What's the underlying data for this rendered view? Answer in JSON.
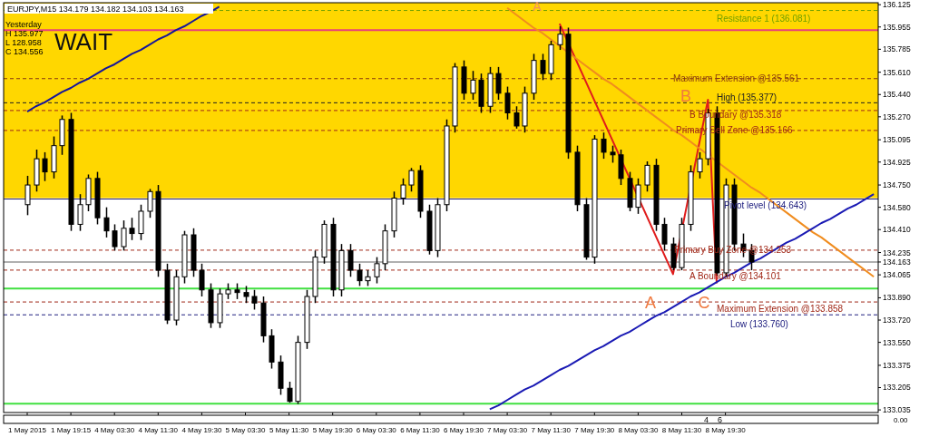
{
  "chart_data": {
    "type": "candlestick",
    "title": "EURJPY,M15 134.179 134.182 134.103 134.163",
    "color": "#000000",
    "categories": [
      "1 May 2015",
      null,
      null,
      null,
      null,
      "1 May 19:15",
      null,
      null,
      null,
      null,
      "4 May 03:30",
      null,
      null,
      null,
      null,
      "4 May 11:30",
      null,
      null,
      null,
      null,
      "4 May 19:30",
      null,
      null,
      null,
      null,
      "5 May 03:30",
      null,
      null,
      null,
      null,
      "5 May 11:30",
      null,
      null,
      null,
      null,
      "5 May 19:30",
      null,
      null,
      null,
      null,
      "6 May 03:30",
      null,
      null,
      null,
      null,
      "6 May 11:30",
      null,
      null,
      null,
      null,
      "6 May 19:30",
      null,
      null,
      null,
      null,
      "7 May 03:30",
      null,
      null,
      null,
      null,
      "7 May 11:30",
      null,
      null,
      null,
      null,
      "7 May 19:30",
      null,
      null,
      null,
      null,
      "8 May 03:30",
      null,
      null,
      null,
      null,
      "8 May 11:30",
      null,
      null,
      null,
      null,
      "8 May 19:30",
      null,
      null,
      null,
      null,
      null,
      null,
      null,
      null,
      null,
      null,
      null,
      null,
      null,
      null,
      null,
      null,
      null
    ],
    "ohlc": [
      [
        134.6,
        134.82,
        134.52,
        134.75
      ],
      [
        134.75,
        135.02,
        134.7,
        134.95
      ],
      [
        134.95,
        135.0,
        134.78,
        134.85
      ],
      [
        134.85,
        135.12,
        134.8,
        135.05
      ],
      [
        135.05,
        135.28,
        134.98,
        135.25
      ],
      [
        135.25,
        135.3,
        134.4,
        134.45
      ],
      [
        134.45,
        134.68,
        134.4,
        134.6
      ],
      [
        134.6,
        134.83,
        134.55,
        134.8
      ],
      [
        134.8,
        134.85,
        134.45,
        134.5
      ],
      [
        134.5,
        134.58,
        134.35,
        134.4
      ],
      [
        134.4,
        134.45,
        134.25,
        134.28
      ],
      [
        134.28,
        134.48,
        134.25,
        134.42
      ],
      [
        134.42,
        134.5,
        134.33,
        134.38
      ],
      [
        134.38,
        134.6,
        134.33,
        134.55
      ],
      [
        134.55,
        134.72,
        134.5,
        134.7
      ],
      [
        134.7,
        134.75,
        134.05,
        134.1
      ],
      [
        134.1,
        134.15,
        133.69,
        133.72
      ],
      [
        133.72,
        134.1,
        133.68,
        134.05
      ],
      [
        134.05,
        134.4,
        134.0,
        134.37
      ],
      [
        134.37,
        134.42,
        134.05,
        134.1
      ],
      [
        134.1,
        134.15,
        133.9,
        133.95
      ],
      [
        133.95,
        134.0,
        133.66,
        133.7
      ],
      [
        133.7,
        133.96,
        133.66,
        133.92
      ],
      [
        133.92,
        134.0,
        133.88,
        133.95
      ],
      [
        133.95,
        134.0,
        133.88,
        133.93
      ],
      [
        133.93,
        133.98,
        133.85,
        133.9
      ],
      [
        133.9,
        133.95,
        133.8,
        133.85
      ],
      [
        133.85,
        133.9,
        133.55,
        133.6
      ],
      [
        133.6,
        133.65,
        133.35,
        133.4
      ],
      [
        133.4,
        133.45,
        133.15,
        133.2
      ],
      [
        133.2,
        133.25,
        133.09,
        133.1
      ],
      [
        133.1,
        133.6,
        133.08,
        133.55
      ],
      [
        133.55,
        133.95,
        133.5,
        133.9
      ],
      [
        133.9,
        134.25,
        133.85,
        134.2
      ],
      [
        134.2,
        134.48,
        134.15,
        134.45
      ],
      [
        134.45,
        134.5,
        133.9,
        133.95
      ],
      [
        133.95,
        134.3,
        133.9,
        134.25
      ],
      [
        134.25,
        134.3,
        134.05,
        134.1
      ],
      [
        134.1,
        134.15,
        133.98,
        134.02
      ],
      [
        134.02,
        134.1,
        133.98,
        134.05
      ],
      [
        134.05,
        134.2,
        134.0,
        134.15
      ],
      [
        134.15,
        134.45,
        134.1,
        134.4
      ],
      [
        134.4,
        134.7,
        134.35,
        134.65
      ],
      [
        134.65,
        134.8,
        134.6,
        134.75
      ],
      [
        134.75,
        134.88,
        134.7,
        134.86
      ],
      [
        134.86,
        134.9,
        134.5,
        134.55
      ],
      [
        134.55,
        134.6,
        134.22,
        134.25
      ],
      [
        134.25,
        134.65,
        134.2,
        134.6
      ],
      [
        134.6,
        135.25,
        134.55,
        135.2
      ],
      [
        135.2,
        135.68,
        135.15,
        135.65
      ],
      [
        135.65,
        135.7,
        135.4,
        135.45
      ],
      [
        135.45,
        135.62,
        135.4,
        135.55
      ],
      [
        135.55,
        135.6,
        135.3,
        135.35
      ],
      [
        135.35,
        135.65,
        135.3,
        135.6
      ],
      [
        135.6,
        135.65,
        135.4,
        135.45
      ],
      [
        135.45,
        135.5,
        135.25,
        135.3
      ],
      [
        135.3,
        135.35,
        135.18,
        135.2
      ],
      [
        135.2,
        135.5,
        135.15,
        135.45
      ],
      [
        135.45,
        135.75,
        135.4,
        135.7
      ],
      [
        135.7,
        135.75,
        135.55,
        135.6
      ],
      [
        135.6,
        135.85,
        135.55,
        135.82
      ],
      [
        135.82,
        135.96,
        135.78,
        135.9
      ],
      [
        135.9,
        135.95,
        134.95,
        135.0
      ],
      [
        135.0,
        135.05,
        134.55,
        134.6
      ],
      [
        134.6,
        134.65,
        134.18,
        134.2
      ],
      [
        134.2,
        135.13,
        134.15,
        135.1
      ],
      [
        135.1,
        135.15,
        134.95,
        135.0
      ],
      [
        135.0,
        135.05,
        134.92,
        134.98
      ],
      [
        134.98,
        135.02,
        134.75,
        134.8
      ],
      [
        134.8,
        134.85,
        134.55,
        134.58
      ],
      [
        134.58,
        134.8,
        134.53,
        134.75
      ],
      [
        134.75,
        134.93,
        134.7,
        134.9
      ],
      [
        134.9,
        134.95,
        134.4,
        134.45
      ],
      [
        134.45,
        134.5,
        134.25,
        134.3
      ],
      [
        134.3,
        134.35,
        134.1,
        134.12
      ],
      [
        134.12,
        134.5,
        134.1,
        134.45
      ],
      [
        134.45,
        134.9,
        134.4,
        134.85
      ],
      [
        134.85,
        135.0,
        134.8,
        134.95
      ],
      [
        134.95,
        135.33,
        134.9,
        135.3
      ],
      [
        135.3,
        135.35,
        134.06,
        134.08
      ],
      [
        134.08,
        134.8,
        134.05,
        134.75
      ],
      [
        134.75,
        134.8,
        134.25,
        134.3
      ],
      [
        134.3,
        134.38,
        134.2,
        134.25
      ],
      [
        134.25,
        134.3,
        134.1,
        134.163
      ],
      null,
      null,
      null,
      null,
      null,
      null,
      null,
      null,
      null,
      null,
      null,
      null,
      null,
      null
    ],
    "series": [
      {
        "type": "line",
        "color": "#14149c",
        "values": [
          135.31,
          135.35,
          135.38,
          135.42,
          135.46,
          135.49,
          135.53,
          135.56,
          135.6,
          135.64,
          135.67,
          135.71,
          135.75,
          135.78,
          135.82,
          135.86,
          135.89,
          135.93,
          135.96,
          136.0,
          136.04,
          136.07,
          136.11,
          null,
          null,
          null,
          null,
          null,
          null,
          null,
          null,
          null,
          null,
          null,
          null,
          null,
          null,
          null,
          null,
          null,
          null,
          null,
          null,
          null,
          null,
          null,
          null,
          null,
          null,
          null,
          null,
          null,
          null,
          null,
          null,
          null,
          null,
          null,
          null,
          null,
          null,
          null,
          null,
          null,
          null,
          null,
          null,
          null,
          null,
          null,
          null,
          null,
          null,
          null,
          null,
          null,
          null,
          null,
          null,
          null,
          null,
          null,
          null,
          null,
          null,
          null,
          null,
          null,
          null,
          null,
          null,
          null,
          null,
          null,
          null,
          null,
          null,
          null
        ]
      },
      {
        "type": "line",
        "color": "#e01c1c",
        "values": [
          null,
          null,
          null,
          null,
          null,
          null,
          null,
          null,
          null,
          null,
          null,
          null,
          null,
          null,
          null,
          null,
          null,
          null,
          null,
          null,
          null,
          null,
          null,
          null,
          null,
          null,
          null,
          null,
          null,
          null,
          null,
          null,
          null,
          null,
          null,
          null,
          null,
          null,
          null,
          null,
          null,
          null,
          null,
          null,
          null,
          null,
          null,
          null,
          null,
          null,
          null,
          null,
          null,
          null,
          null,
          null,
          null,
          null,
          null,
          null,
          null,
          135.98,
          null,
          null,
          null,
          null,
          null,
          null,
          null,
          null,
          null,
          null,
          null,
          null,
          134.07,
          null,
          null,
          null,
          135.4,
          134.0,
          null,
          null,
          null,
          null,
          null,
          null,
          null,
          null,
          null,
          null,
          null,
          null,
          null,
          null,
          null,
          null,
          null,
          null
        ]
      },
      {
        "type": "line",
        "color": "#f08c1e",
        "values": [
          null,
          null,
          null,
          null,
          null,
          null,
          null,
          null,
          null,
          null,
          null,
          null,
          null,
          null,
          null,
          null,
          null,
          null,
          null,
          null,
          null,
          null,
          null,
          null,
          null,
          null,
          null,
          null,
          null,
          null,
          null,
          null,
          null,
          null,
          null,
          null,
          null,
          null,
          null,
          null,
          null,
          null,
          null,
          null,
          null,
          null,
          null,
          null,
          null,
          null,
          null,
          null,
          null,
          null,
          null,
          136.1,
          136.05,
          136.0,
          135.95,
          135.91,
          135.86,
          135.81,
          135.76,
          135.71,
          135.66,
          135.61,
          135.56,
          135.52,
          135.47,
          135.42,
          135.37,
          135.32,
          135.27,
          135.22,
          135.17,
          135.13,
          135.08,
          135.03,
          134.98,
          134.93,
          134.88,
          134.83,
          134.78,
          134.73,
          134.69,
          134.64,
          134.59,
          134.54,
          134.49,
          134.44,
          134.39,
          134.35,
          134.3,
          134.25,
          134.2,
          134.15,
          134.1,
          134.05
        ]
      },
      {
        "type": "line",
        "color": "#1a1ab4",
        "values": [
          null,
          null,
          null,
          null,
          null,
          null,
          null,
          null,
          null,
          null,
          null,
          null,
          null,
          null,
          null,
          null,
          null,
          null,
          null,
          null,
          null,
          null,
          null,
          null,
          null,
          null,
          null,
          null,
          null,
          null,
          null,
          null,
          null,
          null,
          null,
          null,
          null,
          null,
          null,
          null,
          null,
          null,
          null,
          null,
          null,
          null,
          null,
          null,
          null,
          null,
          null,
          null,
          null,
          133.04,
          133.07,
          133.11,
          133.15,
          133.19,
          133.22,
          133.26,
          133.3,
          133.34,
          133.37,
          133.41,
          133.45,
          133.49,
          133.52,
          133.56,
          133.6,
          133.63,
          133.67,
          133.71,
          133.75,
          133.78,
          133.82,
          133.86,
          133.9,
          133.93,
          133.97,
          134.01,
          134.05,
          134.08,
          134.12,
          134.16,
          134.19,
          134.23,
          134.27,
          134.31,
          134.34,
          134.38,
          134.42,
          134.46,
          134.49,
          134.53,
          134.57,
          134.6,
          134.64,
          134.68
        ]
      }
    ],
    "ylim": [
      133.015,
      136.14
    ],
    "yticks": [
      136.125,
      135.955,
      135.785,
      {
        "value": 135.61,
        "label": "135.610"
      },
      {
        "value": 135.44,
        "label": "135.440"
      },
      {
        "value": 135.27,
        "label": "135.270"
      },
      135.095,
      134.925,
      {
        "value": 134.75,
        "label": "134.750"
      },
      {
        "value": 134.58,
        "label": "134.580"
      },
      {
        "value": 134.41,
        "label": "134.410"
      },
      134.235,
      134.163,
      134.065,
      {
        "value": 133.89,
        "label": "133.890"
      },
      {
        "value": 133.72,
        "label": "133.720"
      },
      {
        "value": 133.55,
        "label": "133.550"
      },
      133.375,
      133.205,
      133.035
    ],
    "bands": [
      {
        "axis": "y",
        "from": 134.65,
        "to": 136.14,
        "color": "#ffd700"
      }
    ],
    "ref_lines": [
      {
        "axis": "y",
        "value": 136.081,
        "label": "Resistance 1 (136.081)",
        "color": "#70a000",
        "line_style": "dashed"
      },
      {
        "axis": "y",
        "value": 135.93,
        "color": "#e8407a",
        "line_style": "solid"
      },
      {
        "axis": "y",
        "value": 135.561,
        "label": "Maximum Extension @135.561",
        "color": "#8a3a10",
        "line_style": "dashed"
      },
      {
        "axis": "y",
        "value": 135.377,
        "label": "High (135.377)",
        "color": "#202020",
        "line_style": "dashed"
      },
      {
        "axis": "y",
        "value": 135.318,
        "label": "B Boundary @135.318",
        "color": "#a02818",
        "line_style": "dashed"
      },
      {
        "axis": "y",
        "value": 135.166,
        "label": "Primary Sell Zone @135.166",
        "color": "#a02818",
        "line_style": "dashed"
      },
      {
        "axis": "y",
        "value": 134.643,
        "label": "Pivot level (134.643)",
        "color": "#202080",
        "line_style": "solid"
      },
      {
        "axis": "y",
        "value": 134.253,
        "label": "Primary Buy Zone @134.253",
        "color": "#a02818",
        "line_style": "dashed"
      },
      {
        "axis": "y",
        "value": 134.101,
        "label": "A Boundary @134.101",
        "color": "#a02818",
        "line_style": "dashed"
      },
      {
        "axis": "y",
        "value": 133.858,
        "label": "Maximum Extension @133.858",
        "color": "#a02818",
        "line_style": "dashed"
      },
      {
        "axis": "y",
        "value": 133.76,
        "label": "Low (133.760)",
        "color": "#202080",
        "line_style": "dashed"
      },
      {
        "axis": "y",
        "value": 133.96,
        "color": "#40e040",
        "line_style": "solid"
      },
      {
        "axis": "y",
        "value": 133.083,
        "color": "#40e040",
        "line_style": "solid"
      },
      {
        "axis": "y",
        "value": 134.163,
        "color": "#b0b0b0",
        "line_style": "solid"
      }
    ],
    "annotations": [
      "Yesterday",
      "H 135.977",
      "L 128.958",
      "C 134.556",
      "WAIT",
      "A",
      "A",
      "B",
      "C",
      "0.00",
      "4",
      "6"
    ]
  }
}
